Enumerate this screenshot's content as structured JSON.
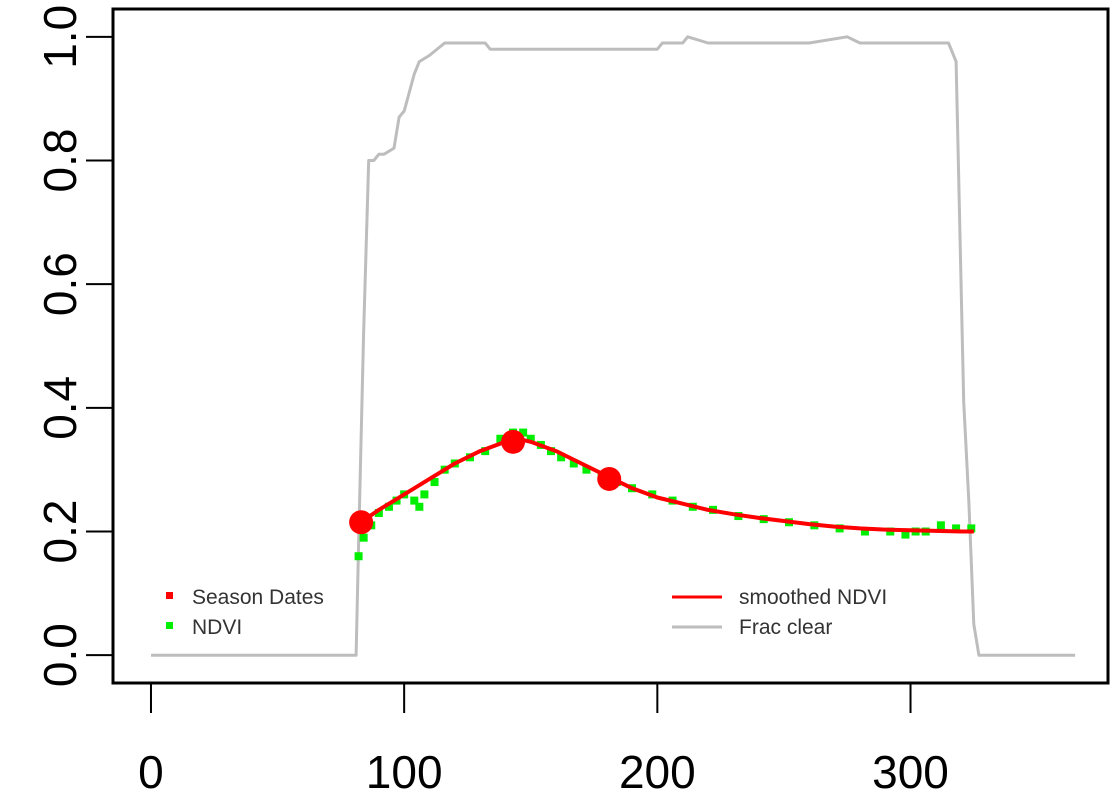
{
  "chart_data": {
    "type": "line",
    "title": "",
    "xlabel": "",
    "ylabel": "",
    "xlim": [
      -15,
      378
    ],
    "ylim": [
      -0.045,
      1.045
    ],
    "x_ticks": [
      0,
      100,
      200,
      300
    ],
    "y_ticks": [
      0.0,
      0.2,
      0.4,
      0.6,
      0.8,
      1.0
    ],
    "x_tick_labels": [
      "0",
      "100",
      "200",
      "300"
    ],
    "y_tick_labels": [
      "0.0",
      "0.2",
      "0.4",
      "0.6",
      "0.8",
      "1.0"
    ],
    "grid": false,
    "legend_position": "bottom",
    "series": [
      {
        "name": "Frac clear",
        "color": "#bdbdbd",
        "style": "line",
        "x": [
          0,
          81,
          82,
          84,
          86,
          88,
          90,
          92,
          96,
          98,
          100,
          104,
          106,
          110,
          116,
          132,
          134,
          160,
          190,
          200,
          202,
          210,
          212,
          220,
          240,
          260,
          275,
          280,
          290,
          310,
          315,
          318,
          321,
          323,
          325,
          327,
          330,
          345,
          365
        ],
        "y": [
          0,
          0,
          0.18,
          0.52,
          0.8,
          0.8,
          0.81,
          0.81,
          0.82,
          0.87,
          0.88,
          0.94,
          0.96,
          0.97,
          0.99,
          0.99,
          0.98,
          0.98,
          0.98,
          0.98,
          0.99,
          0.99,
          1.0,
          0.99,
          0.99,
          0.99,
          1.0,
          0.99,
          0.99,
          0.99,
          0.99,
          0.96,
          0.41,
          0.25,
          0.05,
          0.0,
          0.0,
          0.0,
          0.0
        ]
      },
      {
        "name": "NDVI",
        "color": "#00ee00",
        "style": "points",
        "x": [
          82,
          84,
          87,
          90,
          94,
          97,
          100,
          104,
          106,
          108,
          112,
          116,
          120,
          126,
          132,
          138,
          143,
          147,
          150,
          154,
          158,
          162,
          167,
          172,
          178,
          184,
          190,
          198,
          206,
          214,
          222,
          232,
          242,
          252,
          262,
          272,
          282,
          292,
          298,
          302,
          306,
          312,
          318,
          324
        ],
        "y": [
          0.16,
          0.19,
          0.21,
          0.23,
          0.24,
          0.25,
          0.26,
          0.25,
          0.24,
          0.26,
          0.28,
          0.3,
          0.31,
          0.32,
          0.33,
          0.35,
          0.36,
          0.36,
          0.35,
          0.34,
          0.33,
          0.32,
          0.31,
          0.3,
          0.29,
          0.28,
          0.27,
          0.26,
          0.25,
          0.24,
          0.235,
          0.225,
          0.22,
          0.215,
          0.21,
          0.205,
          0.2,
          0.2,
          0.195,
          0.2,
          0.2,
          0.21,
          0.205,
          0.205
        ]
      },
      {
        "name": "smoothed NDVI",
        "color": "#ff0000",
        "style": "line",
        "x": [
          83,
          90,
          100,
          110,
          120,
          130,
          140,
          145,
          150,
          160,
          170,
          180,
          190,
          200,
          210,
          220,
          230,
          240,
          250,
          260,
          270,
          280,
          290,
          300,
          310,
          320,
          325
        ],
        "y": [
          0.215,
          0.235,
          0.26,
          0.285,
          0.31,
          0.33,
          0.345,
          0.35,
          0.345,
          0.33,
          0.31,
          0.29,
          0.27,
          0.255,
          0.245,
          0.235,
          0.228,
          0.222,
          0.217,
          0.212,
          0.208,
          0.205,
          0.203,
          0.202,
          0.201,
          0.2,
          0.2
        ]
      },
      {
        "name": "Season Dates",
        "color": "#ff0000",
        "style": "points",
        "x": [
          83,
          143,
          181
        ],
        "y": [
          0.215,
          0.345,
          0.285
        ]
      }
    ],
    "legend_left": [
      {
        "label": "Season Dates",
        "color": "#ff0000",
        "kind": "point"
      },
      {
        "label": "NDVI",
        "color": "#00ee00",
        "kind": "point"
      }
    ],
    "legend_right": [
      {
        "label": "smoothed NDVI",
        "color": "#ff0000",
        "kind": "line"
      },
      {
        "label": "Frac clear",
        "color": "#bdbdbd",
        "kind": "line"
      }
    ]
  }
}
